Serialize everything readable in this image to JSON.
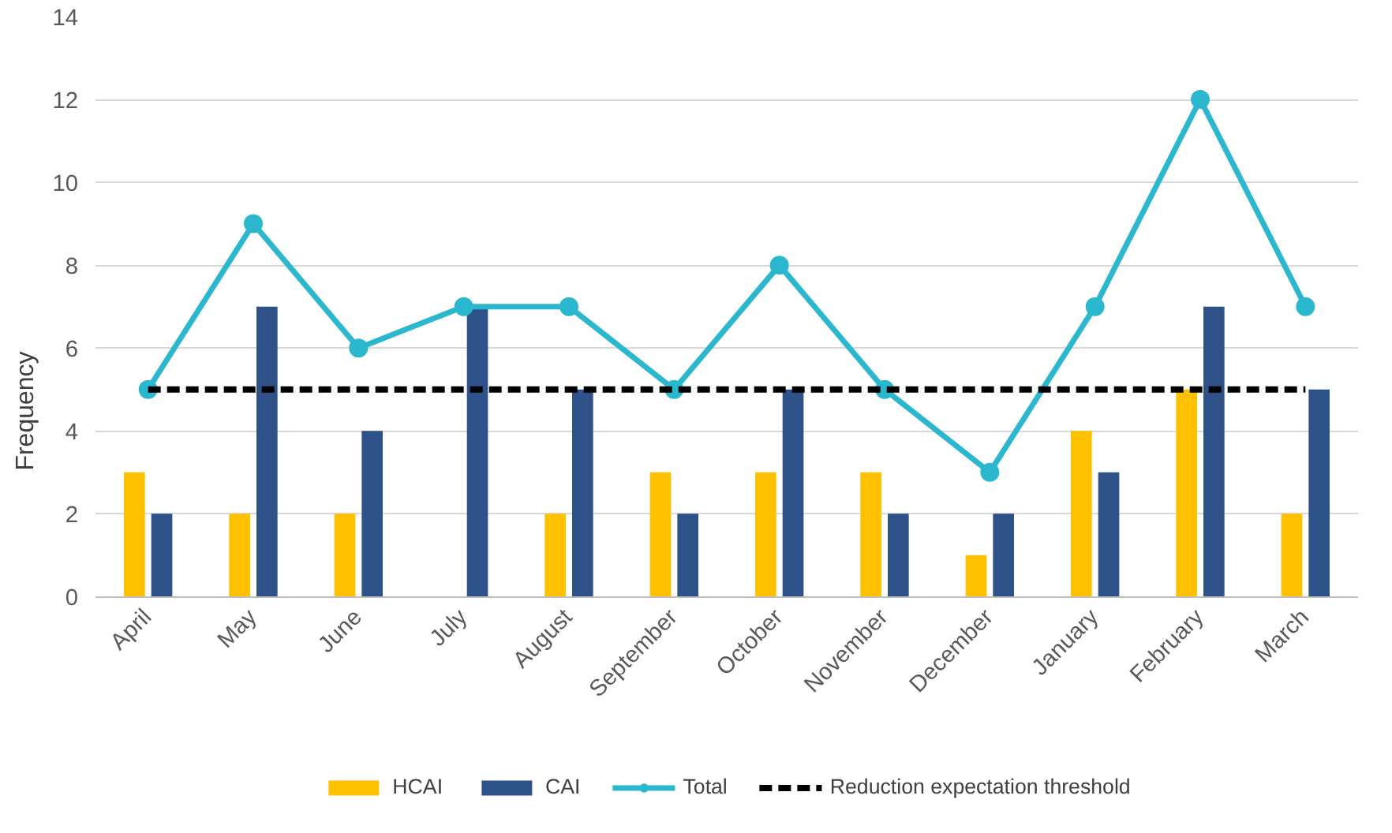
{
  "chart_data": {
    "type": "bar",
    "ylabel": "Frequency",
    "categories": [
      "April",
      "May",
      "June",
      "July",
      "August",
      "September",
      "October",
      "November",
      "December",
      "January",
      "February",
      "March"
    ],
    "series": [
      {
        "name": "HCAI",
        "color": "#ffc000",
        "values": [
          3,
          2,
          2,
          0,
          2,
          3,
          3,
          3,
          1,
          4,
          5,
          2
        ]
      },
      {
        "name": "CAI",
        "color": "#2f5189",
        "values": [
          2,
          7,
          4,
          7,
          5,
          2,
          5,
          2,
          2,
          3,
          7,
          5
        ]
      },
      {
        "name": "Total",
        "type": "line",
        "color": "#2bb8cf",
        "marker": "circle",
        "line_style": "solid",
        "values": [
          5,
          9,
          6,
          7,
          7,
          5,
          8,
          5,
          3,
          7,
          12,
          7
        ]
      },
      {
        "name": "Reduction expectation threshold",
        "type": "line",
        "color": "#000000",
        "marker": "none",
        "line_style": "dashed",
        "values": [
          5,
          5,
          5,
          5,
          5,
          5,
          5,
          5,
          5,
          5,
          5,
          5
        ]
      }
    ],
    "ylim": [
      0,
      14
    ],
    "yticks": [
      0,
      2,
      4,
      6,
      8,
      10,
      12,
      14
    ],
    "grid": "y",
    "legend": "bottom"
  }
}
